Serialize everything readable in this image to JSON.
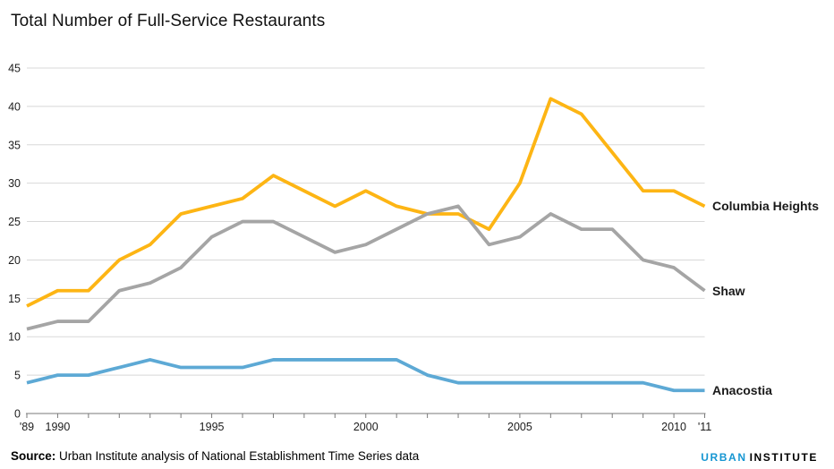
{
  "title": "Total Number of Full-Service Restaurants",
  "source": {
    "label": "Source:",
    "text": " Urban Institute analysis of National Establishment Time Series data"
  },
  "logo": {
    "word1": "URBAN",
    "word2": "INSTITUTE",
    "word1_color": "#1696d2",
    "word2_color": "#000000"
  },
  "chart_data": {
    "type": "line",
    "title": "Total Number of Full-Service Restaurants",
    "xlabel": "",
    "ylabel": "",
    "ylim": [
      0,
      45
    ],
    "grid": true,
    "gridline_color": "#d8d8d8",
    "axis_color": "#7a7a7a",
    "legend_position": "right-end-of-line",
    "x": [
      1989,
      1990,
      1991,
      1992,
      1993,
      1994,
      1995,
      1996,
      1997,
      1998,
      1999,
      2000,
      2001,
      2002,
      2003,
      2004,
      2005,
      2006,
      2007,
      2008,
      2009,
      2010,
      2011
    ],
    "x_tick_labels": [
      {
        "year": 1989,
        "label": "'89"
      },
      {
        "year": 1990,
        "label": "1990"
      },
      {
        "year": 1995,
        "label": "1995"
      },
      {
        "year": 2000,
        "label": "2000"
      },
      {
        "year": 2005,
        "label": "2005"
      },
      {
        "year": 2010,
        "label": "2010"
      },
      {
        "year": 2011,
        "label": "'11"
      }
    ],
    "y_ticks": [
      0,
      5,
      10,
      15,
      20,
      25,
      30,
      35,
      40,
      45
    ],
    "series": [
      {
        "name": "Columbia Heights",
        "color": "#fdb514",
        "values": [
          14,
          16,
          16,
          20,
          22,
          26,
          27,
          28,
          31,
          29,
          27,
          29,
          27,
          26,
          26,
          24,
          30,
          41,
          39,
          34,
          29,
          29,
          27
        ]
      },
      {
        "name": "Shaw",
        "color": "#a5a5a5",
        "values": [
          11,
          12,
          12,
          16,
          17,
          19,
          23,
          25,
          25,
          23,
          21,
          22,
          24,
          26,
          27,
          22,
          23,
          26,
          24,
          24,
          20,
          19,
          16
        ]
      },
      {
        "name": "Anacostia",
        "color": "#5da9d5",
        "values": [
          4,
          5,
          5,
          6,
          7,
          6,
          6,
          6,
          7,
          7,
          7,
          7,
          7,
          5,
          4,
          4,
          4,
          4,
          4,
          4,
          4,
          3,
          3
        ]
      }
    ]
  }
}
